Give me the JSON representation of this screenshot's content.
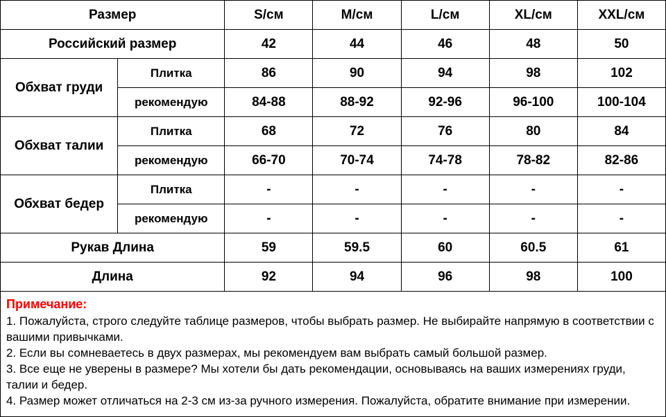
{
  "table": {
    "header": {
      "size_label": "Размер",
      "columns": [
        "S/см",
        "M/см",
        "L/см",
        "XL/см",
        "XXL/см"
      ]
    },
    "rows": [
      {
        "type": "merged",
        "label": "Российский размер",
        "values": [
          "42",
          "44",
          "46",
          "48",
          "50"
        ]
      },
      {
        "type": "paired",
        "label": "Обхват груди",
        "sub1": "Плитка",
        "values1": [
          "86",
          "90",
          "94",
          "98",
          "102"
        ],
        "sub2": "рекомендую",
        "values2": [
          "84-88",
          "88-92",
          "92-96",
          "96-100",
          "100-104"
        ]
      },
      {
        "type": "paired",
        "label": "Обхват талии",
        "sub1": "Плитка",
        "values1": [
          "68",
          "72",
          "76",
          "80",
          "84"
        ],
        "sub2": "рекомендую",
        "values2": [
          "66-70",
          "70-74",
          "74-78",
          "78-82",
          "82-86"
        ]
      },
      {
        "type": "paired",
        "label": "Обхват бедер",
        "sub1": "Плитка",
        "values1": [
          "-",
          "-",
          "-",
          "-",
          "-"
        ],
        "sub2": "рекомендую",
        "values2": [
          "-",
          "-",
          "-",
          "-",
          "-"
        ]
      },
      {
        "type": "merged",
        "label": "Рукав Длина",
        "values": [
          "59",
          "59.5",
          "60",
          "60.5",
          "61"
        ]
      },
      {
        "type": "merged",
        "label": "Длина",
        "values": [
          "92",
          "94",
          "96",
          "98",
          "100"
        ]
      }
    ]
  },
  "note": {
    "title": "Примечание:",
    "lines": [
      "1. Пожалуйста, строго следуйте таблице размеров, чтобы выбрать размер. Не выбирайте напрямую в соответствии с вашими привычками.",
      "2. Если вы сомневаетесь в двух размерах, мы рекомендуем вам выбрать самый большой размер.",
      "3. Все еще не уверены в размере? Мы хотели бы дать рекомендации, основываясь на ваших измерениях груди, талии и бедер.",
      "4. Размер может отличаться на 2-3 см из-за ручного измерения. Пожалуйста, обратите внимание при измерении."
    ]
  },
  "style": {
    "font_family": "Arial",
    "text_color": "#000000",
    "note_title_color": "#ff0000",
    "border_color": "#000000",
    "background_color": "#ffffff",
    "cell_font_size": 19,
    "sub_font_size": 17,
    "note_font_size": 17
  }
}
